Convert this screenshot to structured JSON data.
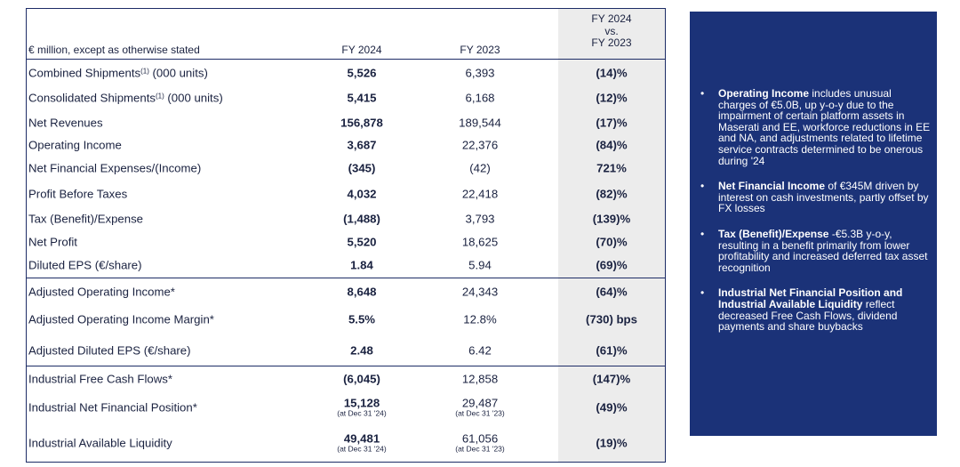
{
  "table": {
    "header": {
      "desc": "€ million, except as otherwise stated",
      "col1": "FY 2024",
      "col2": "FY 2023",
      "vs_line1": "FY 2024",
      "vs_line2": "vs.",
      "vs_line3": "FY 2023"
    },
    "rows": [
      {
        "pre": "Combined Shipments",
        "sup": "(1)",
        "post": " (000 units)",
        "fy2024": "5,526",
        "fy2023": "6,393",
        "vs": "(14)%"
      },
      {
        "pre": "Consolidated Shipments",
        "sup": "(1)",
        "post": " (000 units)",
        "fy2024": "5,415",
        "fy2023": "6,168",
        "vs": "(12)%"
      },
      {
        "label": "Net Revenues",
        "fy2024": "156,878",
        "fy2023": "189,544",
        "vs": "(17)%"
      },
      {
        "label": "Operating Income",
        "fy2024": "3,687",
        "fy2023": "22,376",
        "vs": "(84)%"
      },
      {
        "label": "Net Financial Expenses/(Income)",
        "fy2024": "(345)",
        "fy2023": "(42)",
        "vs": "721%"
      },
      {
        "label": "Profit Before Taxes",
        "fy2024": "4,032",
        "fy2023": "22,418",
        "vs": "(82)%"
      },
      {
        "label": "Tax (Benefit)/Expense",
        "fy2024": "(1,488)",
        "fy2023": "3,793",
        "vs": "(139)%"
      },
      {
        "label": "Net Profit",
        "fy2024": "5,520",
        "fy2023": "18,625",
        "vs": "(70)%"
      },
      {
        "label": "Diluted EPS (€/share)",
        "fy2024": "1.84",
        "fy2023": "5.94",
        "vs": "(69)%"
      },
      {
        "label": "Adjusted Operating Income*",
        "fy2024": "8,648",
        "fy2023": "24,343",
        "vs": "(64)%"
      },
      {
        "label": "Adjusted Operating Income Margin*",
        "fy2024": "5.5%",
        "fy2023": "12.8%",
        "vs": "(730) bps"
      },
      {
        "label": "Adjusted Diluted EPS (€/share)",
        "fy2024": "2.48",
        "fy2023": "6.42",
        "vs": "(61)%"
      },
      {
        "label": "Industrial Free Cash Flows*",
        "fy2024": "(6,045)",
        "fy2023": "12,858",
        "vs": "(147)%"
      },
      {
        "label": "Industrial Net Financial Position*",
        "fy2024": "15,128",
        "fy2024_note": "(at Dec 31 '24)",
        "fy2023": "29,487",
        "fy2023_note": "(at Dec 31 '23)",
        "vs": "(49)%"
      },
      {
        "label": "Industrial Available Liquidity",
        "fy2024": "49,481",
        "fy2024_note": "(at Dec 31 '24)",
        "fy2023": "61,056",
        "fy2023_note": "(at Dec 31 '23)",
        "vs": "(19)%"
      }
    ]
  },
  "panel": {
    "bullet": "•",
    "items": [
      {
        "bold": "Operating Income",
        "text": " includes unusual charges of €5.0B, up y-o-y due to the impairment of certain platform assets in Maserati and EE, workforce reductions in EE and NA, and adjustments related to lifetime service contracts determined to be onerous during '24"
      },
      {
        "bold": "Net Financial Income",
        "text": " of €345M driven by interest on cash investments, partly offset by FX losses"
      },
      {
        "bold": "Tax (Benefit)/Expense",
        "text": " -€5.3B y-o-y, resulting in a benefit primarily from lower profitability and increased deferred tax asset recognition"
      },
      {
        "bold": "Industrial Net Financial Position and Industrial Available Liquidity",
        "text": " reflect decreased Free Cash Flows, dividend payments and share buybacks"
      }
    ]
  },
  "colors": {
    "panel_bg": "#1b3278",
    "border": "#1d2c66",
    "shade": "#ececec"
  }
}
